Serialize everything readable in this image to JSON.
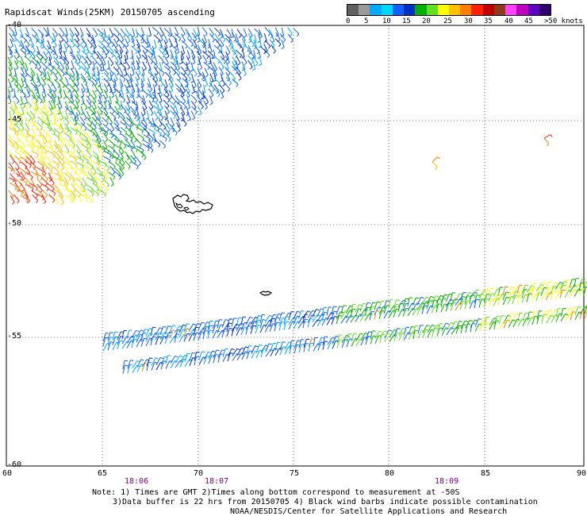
{
  "title": "Rapidscat Winds(25KM) 20150705 ascending",
  "legend": {
    "colors": [
      "#606060",
      "#9a9a9a",
      "#00aaff",
      "#00d8ff",
      "#1060ff",
      "#0030c0",
      "#00b000",
      "#60e020",
      "#ffff00",
      "#ffc000",
      "#ff8000",
      "#ff2000",
      "#c00000",
      "#8b3a1a",
      "#ff40ff",
      "#c000c0",
      "#6000c0",
      "#30006a"
    ],
    "labels": [
      "0",
      "5",
      "10",
      "15",
      "20",
      "25",
      "30",
      "35",
      "40",
      "45",
      ">50 knots"
    ]
  },
  "axes": {
    "x_ticks": [
      "60",
      "65",
      "70",
      "75",
      "80",
      "85",
      "90"
    ],
    "y_ticks": [
      "-40",
      "-45",
      "-50",
      "-55",
      "-60"
    ]
  },
  "times": [
    "18:06",
    "18:07",
    "18:09"
  ],
  "notes": [
    "Note: 1) Times are GMT 2)Times along bottom correspond to measurement at -50S",
    "3)Data buffer is 22 hrs from 20150705 4) Black wind barbs indicate possible contamination",
    "NOAA/NESDIS/Center for Satellite Applications and Research"
  ]
}
